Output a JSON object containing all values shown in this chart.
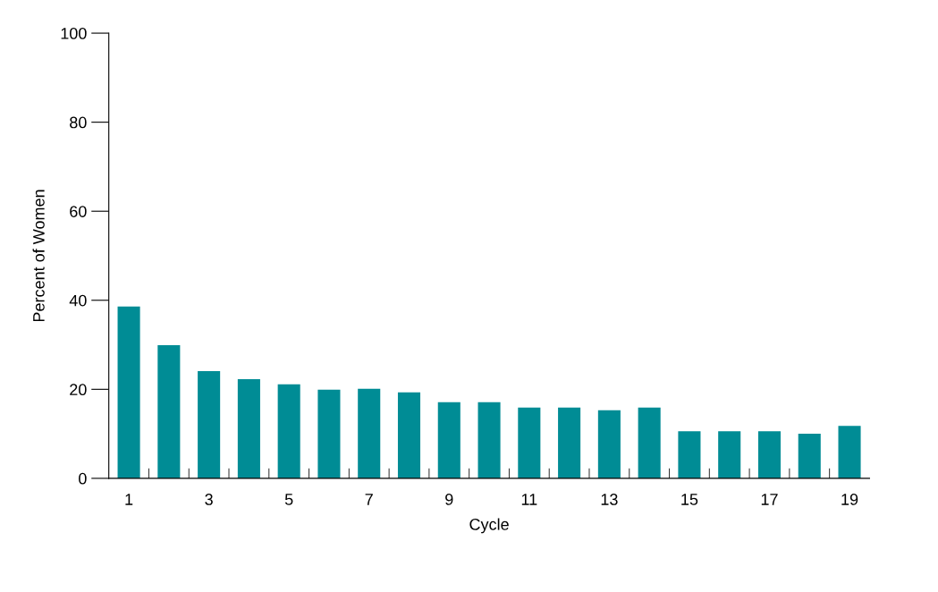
{
  "chart_data": {
    "type": "bar",
    "xlabel": "Cycle",
    "ylabel": "Percent of Women",
    "categories": [
      "1",
      null,
      "3",
      null,
      "5",
      null,
      "7",
      null,
      "9",
      null,
      "11",
      null,
      "13",
      null,
      "15",
      null,
      "17",
      null,
      "19"
    ],
    "values": [
      38.6,
      29.9,
      24.1,
      22.3,
      21.1,
      19.9,
      20.1,
      19.3,
      17.1,
      17.1,
      15.9,
      15.9,
      15.3,
      15.9,
      10.6,
      10.6,
      10.6,
      10.0,
      11.8
    ],
    "color": "#008c95",
    "ylim": [
      0,
      100
    ],
    "yticks": [
      0,
      20,
      40,
      60,
      80,
      100
    ],
    "grid": false,
    "legend": false
  }
}
